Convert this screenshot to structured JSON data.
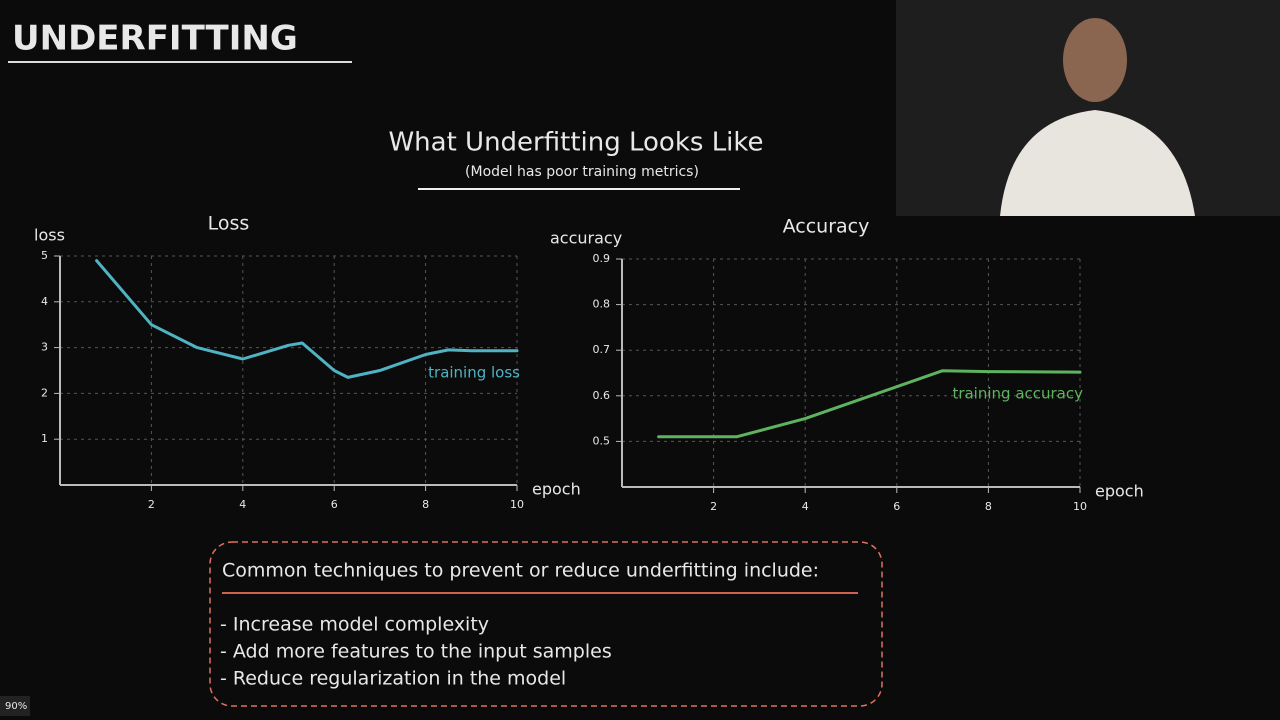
{
  "header": {
    "title": "UNDERFITTING"
  },
  "slide": {
    "title": "What Underfitting Looks Like",
    "subtitle": "(Model has poor training metrics)"
  },
  "chart_data": [
    {
      "type": "line",
      "title": "Loss",
      "y_label": "loss",
      "x_label": "epoch",
      "x": [
        0.8,
        2,
        3,
        4,
        5,
        5.3,
        6,
        6.3,
        7,
        8,
        8.5,
        9,
        10
      ],
      "series": [
        {
          "name": "training loss",
          "color": "#4fb3c4",
          "values": [
            4.9,
            3.5,
            3.0,
            2.75,
            3.05,
            3.1,
            2.5,
            2.35,
            2.5,
            2.85,
            2.95,
            2.93,
            2.93
          ]
        }
      ],
      "xlim": [
        0,
        10
      ],
      "xticks": [
        2,
        4,
        6,
        8,
        10
      ],
      "ylim": [
        0,
        5
      ],
      "yticks": [
        1,
        2,
        3,
        4,
        5
      ],
      "grid": true
    },
    {
      "type": "line",
      "title": "Accuracy",
      "y_label": "accuracy",
      "x_label": "epoch",
      "x": [
        0.8,
        2.5,
        4,
        6,
        7,
        8,
        10
      ],
      "series": [
        {
          "name": "training accuracy",
          "color": "#5fb35f",
          "values": [
            0.51,
            0.51,
            0.55,
            0.62,
            0.655,
            0.653,
            0.652
          ]
        }
      ],
      "xlim": [
        0,
        10
      ],
      "xticks": [
        2,
        4,
        6,
        8,
        10
      ],
      "ylim": [
        0.4,
        0.9
      ],
      "yticks": [
        0.5,
        0.6,
        0.7,
        0.8,
        0.9
      ],
      "grid": true
    }
  ],
  "note": {
    "heading": "Common techniques to prevent or reduce underfitting include:",
    "items": [
      "- Increase model complexity",
      "- Add more features to the input samples",
      "- Reduce regularization in the model"
    ]
  },
  "zoom": "90%"
}
